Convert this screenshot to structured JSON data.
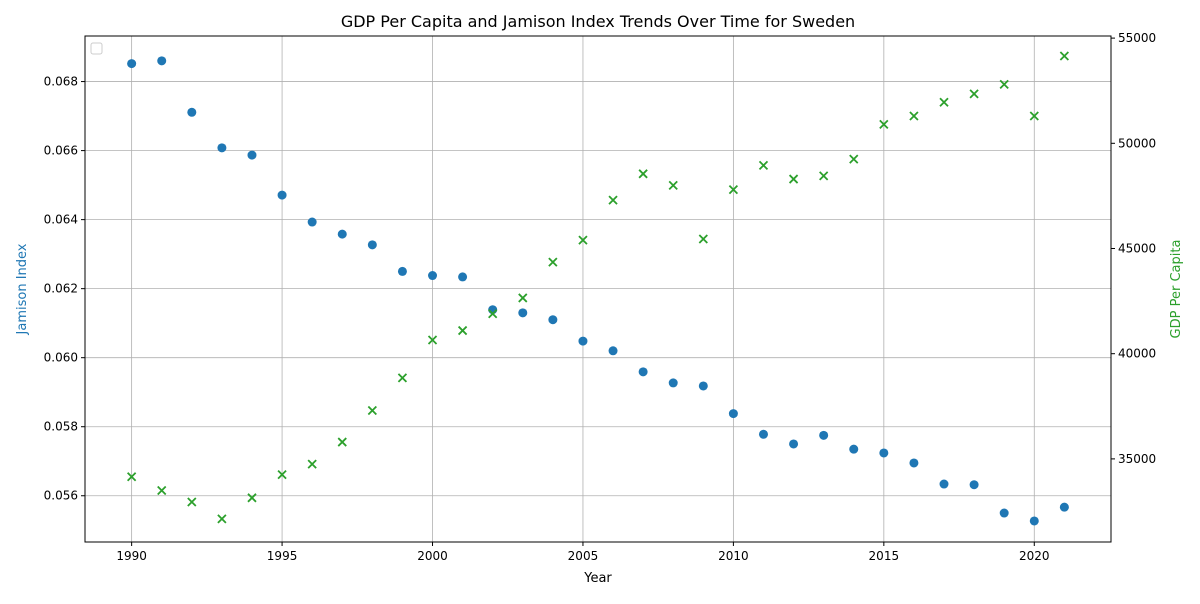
{
  "chart_data": {
    "type": "scatter",
    "title": "GDP Per Capita and Jamison Index Trends Over Time for Sweden",
    "xlabel": "Year",
    "ylabel_left": "Jamison Index",
    "ylabel_right": "GDP Per Capita",
    "xlim": [
      1988.45,
      2022.55
    ],
    "ylim_left": [
      0.05466,
      0.06932
    ],
    "ylim_right": [
      31050,
      55100
    ],
    "x_ticks": [
      1990,
      1995,
      2000,
      2005,
      2010,
      2015,
      2020
    ],
    "x_tick_labels": [
      "1990",
      "1995",
      "2000",
      "2005",
      "2010",
      "2015",
      "2020"
    ],
    "y_left_ticks": [
      0.056,
      0.058,
      0.06,
      0.062,
      0.064,
      0.066,
      0.068
    ],
    "y_left_tick_labels": [
      "0.056",
      "0.058",
      "0.060",
      "0.062",
      "0.064",
      "0.066",
      "0.068"
    ],
    "y_right_ticks": [
      35000,
      40000,
      45000,
      50000,
      55000
    ],
    "y_right_tick_labels": [
      "35000",
      "40000",
      "45000",
      "50000",
      "55000"
    ],
    "grid": true,
    "legend": "top-left",
    "x": [
      1990,
      1991,
      1992,
      1993,
      1994,
      1995,
      1996,
      1997,
      1998,
      1999,
      2000,
      2001,
      2002,
      2003,
      2004,
      2005,
      2006,
      2007,
      2008,
      2009,
      2010,
      2011,
      2012,
      2013,
      2014,
      2015,
      2016,
      2017,
      2018,
      2019,
      2020,
      2021
    ],
    "series": [
      {
        "axis": "left",
        "marker": "circle",
        "color": "#1f77b4",
        "values": [
          0.06852,
          0.0686,
          0.06711,
          0.06608,
          0.06587,
          0.06471,
          0.06393,
          0.06358,
          0.06327,
          0.0625,
          0.06238,
          0.06234,
          0.06139,
          0.0613,
          0.0611,
          0.06048,
          0.0602,
          0.05959,
          0.05927,
          0.05918,
          0.05838,
          0.05778,
          0.0575,
          0.05775,
          0.05735,
          0.05724,
          0.05695,
          0.05634,
          0.05632,
          0.0555,
          0.05527,
          0.05567
        ]
      },
      {
        "axis": "right",
        "marker": "x",
        "color": "#2ca02c",
        "values": [
          34150,
          33500,
          32950,
          32150,
          33150,
          34250,
          34750,
          35800,
          37300,
          38850,
          40650,
          41100,
          41900,
          42650,
          44350,
          45400,
          47300,
          48550,
          48000,
          45450,
          47800,
          48950,
          48300,
          48450,
          49250,
          50900,
          51300,
          51950,
          52350,
          52800,
          51300,
          54150
        ]
      }
    ]
  }
}
